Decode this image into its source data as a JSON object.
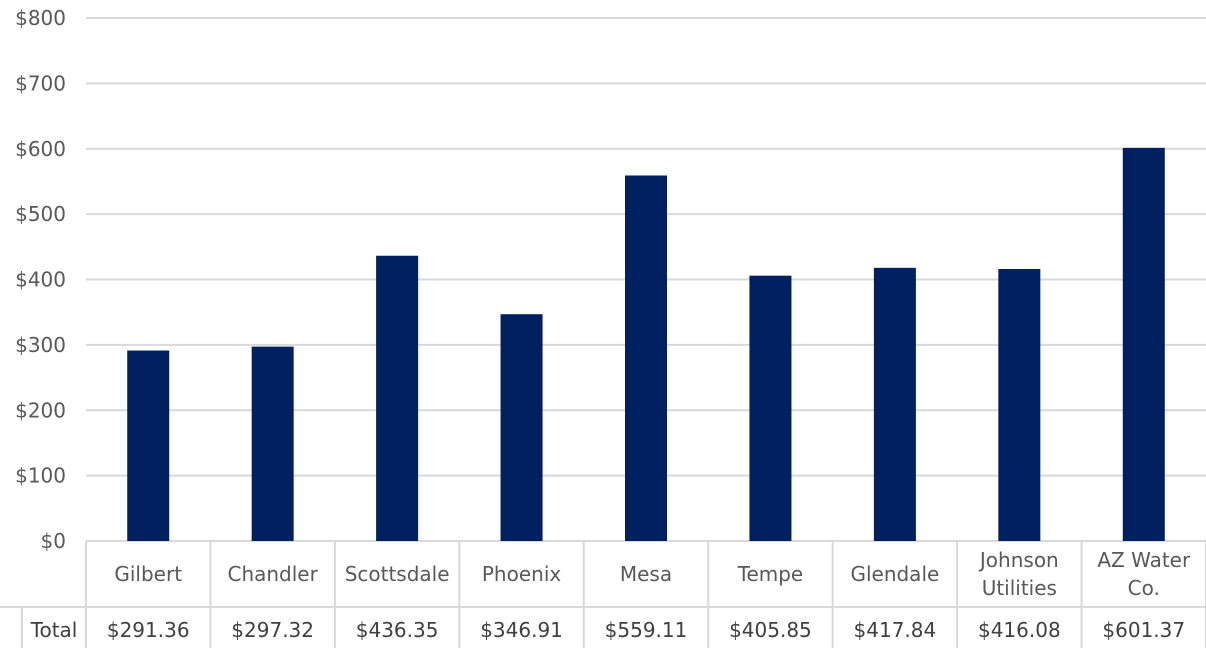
{
  "chart_data": {
    "type": "bar",
    "categories": [
      [
        "Gilbert"
      ],
      [
        "Chandler"
      ],
      [
        "Scottsdale"
      ],
      [
        "Phoenix"
      ],
      [
        "Mesa"
      ],
      [
        "Tempe"
      ],
      [
        "Glendale"
      ],
      [
        "Johnson",
        "Utilities"
      ],
      [
        "AZ Water",
        "Co."
      ]
    ],
    "series": [
      {
        "name": "Total",
        "values": [
          291.36,
          297.32,
          436.35,
          346.91,
          559.11,
          405.85,
          417.84,
          416.08,
          601.37
        ],
        "value_labels": [
          "$291.36",
          "$297.32",
          "$436.35",
          "$346.91",
          "$559.11",
          "$405.85",
          "$417.84",
          "$416.08",
          "$601.37"
        ]
      }
    ],
    "y_ticks": [
      "$0",
      "$100",
      "$200",
      "$300",
      "$400",
      "$500",
      "$600",
      "$700",
      "$800"
    ],
    "ylim": [
      0,
      800
    ],
    "grid": true,
    "legend": "data-table",
    "colors": {
      "bar": "#002060",
      "grid": "#d9d9d9",
      "table_border": "#d9d9d9"
    }
  }
}
